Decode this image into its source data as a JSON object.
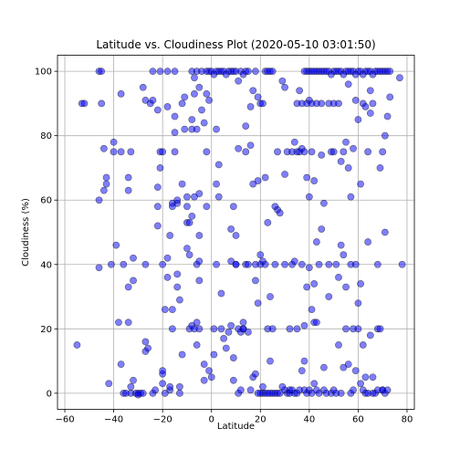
{
  "chart_data": {
    "type": "scatter",
    "title": "Latitude vs. Cloudiness Plot (2020-05-10 03:01:50)",
    "xlabel": "Latitude",
    "ylabel": "Cloudiness (%)",
    "xlim": [
      -63,
      83
    ],
    "ylim": [
      -5,
      105
    ],
    "xticks": [
      -60,
      -40,
      -20,
      0,
      20,
      40,
      60,
      80
    ],
    "yticks": [
      0,
      20,
      40,
      60,
      80,
      100
    ],
    "grid": true,
    "marker_color": "#0000ff",
    "marker_edge_color": "#000000",
    "points": [
      [
        -55,
        15
      ],
      [
        -53,
        90
      ],
      [
        -52,
        90
      ],
      [
        -46,
        39
      ],
      [
        -46,
        100
      ],
      [
        -46,
        60
      ],
      [
        -45,
        90
      ],
      [
        -45,
        100
      ],
      [
        -44,
        76
      ],
      [
        -44,
        63
      ],
      [
        -43,
        65
      ],
      [
        -43,
        67
      ],
      [
        -42,
        3
      ],
      [
        -41,
        40
      ],
      [
        -40,
        78
      ],
      [
        -40,
        75
      ],
      [
        -39,
        46
      ],
      [
        -38,
        22
      ],
      [
        -37,
        9
      ],
      [
        -37,
        75
      ],
      [
        -37,
        93
      ],
      [
        -36,
        40
      ],
      [
        -36,
        0
      ],
      [
        -35,
        0
      ],
      [
        -34,
        22
      ],
      [
        -34,
        33
      ],
      [
        -34,
        63
      ],
      [
        -34,
        67
      ],
      [
        -33,
        75
      ],
      [
        -33,
        0
      ],
      [
        -33,
        2
      ],
      [
        -32,
        42
      ],
      [
        -32,
        35
      ],
      [
        -32,
        4
      ],
      [
        -31,
        0
      ],
      [
        -30,
        0
      ],
      [
        -30,
        -0.5
      ],
      [
        -29,
        0
      ],
      [
        -28,
        0
      ],
      [
        -28,
        95
      ],
      [
        -27,
        40
      ],
      [
        -27,
        91
      ],
      [
        -27,
        16
      ],
      [
        -27,
        13
      ],
      [
        -26,
        14
      ],
      [
        -25,
        90
      ],
      [
        -24,
        100
      ],
      [
        -24,
        91
      ],
      [
        -24,
        0
      ],
      [
        -23,
        1
      ],
      [
        -22,
        88
      ],
      [
        -22,
        58
      ],
      [
        -22,
        52
      ],
      [
        -22,
        64
      ],
      [
        -21,
        100
      ],
      [
        -21,
        70
      ],
      [
        -21,
        75
      ],
      [
        -20,
        75
      ],
      [
        -20,
        40
      ],
      [
        -20,
        6
      ],
      [
        -20,
        7
      ],
      [
        -20,
        3
      ],
      [
        -19,
        0
      ],
      [
        -19,
        26
      ],
      [
        -18,
        100
      ],
      [
        -18,
        89
      ],
      [
        -18,
        42
      ],
      [
        -18,
        36
      ],
      [
        -17,
        1
      ],
      [
        -17,
        2
      ],
      [
        -17,
        49
      ],
      [
        -16,
        59
      ],
      [
        -16,
        58
      ],
      [
        -16,
        26
      ],
      [
        -16,
        20
      ],
      [
        -15,
        81
      ],
      [
        -15,
        86
      ],
      [
        -15,
        75
      ],
      [
        -15,
        100
      ],
      [
        -14,
        59
      ],
      [
        -14,
        60
      ],
      [
        -14,
        33
      ],
      [
        -14,
        37
      ],
      [
        -13,
        29
      ],
      [
        -13,
        2
      ],
      [
        -13,
        0
      ],
      [
        -12,
        65
      ],
      [
        -12,
        90
      ],
      [
        -12,
        12
      ],
      [
        -11,
        92
      ],
      [
        -11,
        82
      ],
      [
        -10,
        58
      ],
      [
        -10,
        61
      ],
      [
        -10,
        45
      ],
      [
        -10,
        53
      ],
      [
        -9,
        43
      ],
      [
        -9,
        53
      ],
      [
        -9,
        20
      ],
      [
        -8,
        21
      ],
      [
        -8,
        82
      ],
      [
        -8,
        100
      ],
      [
        -8,
        55
      ],
      [
        -8,
        85
      ],
      [
        -7,
        98
      ],
      [
        -7,
        93
      ],
      [
        -7,
        61
      ],
      [
        -7,
        20
      ],
      [
        -6,
        100
      ],
      [
        -6,
        82
      ],
      [
        -6,
        40
      ],
      [
        -6,
        22
      ],
      [
        -6,
        15
      ],
      [
        -5,
        95
      ],
      [
        -5,
        35
      ],
      [
        -5,
        62
      ],
      [
        -5,
        41
      ],
      [
        -5,
        49
      ],
      [
        -5,
        20
      ],
      [
        -4,
        100
      ],
      [
        -4,
        88
      ],
      [
        -3,
        9
      ],
      [
        -3,
        4
      ],
      [
        -3,
        84
      ],
      [
        -2,
        100
      ],
      [
        -2,
        93
      ],
      [
        -2,
        75
      ],
      [
        -2,
        58
      ],
      [
        -1,
        91
      ],
      [
        -1,
        100
      ],
      [
        -1,
        7
      ],
      [
        0,
        100
      ],
      [
        0,
        5
      ],
      [
        1,
        99
      ],
      [
        1,
        20
      ],
      [
        1,
        12
      ],
      [
        2,
        100
      ],
      [
        2,
        65
      ],
      [
        2,
        40
      ],
      [
        2,
        82
      ],
      [
        3,
        100
      ],
      [
        3,
        61
      ],
      [
        3,
        71
      ],
      [
        4,
        100
      ],
      [
        4,
        20
      ],
      [
        4,
        31
      ],
      [
        5,
        100
      ],
      [
        5,
        17
      ],
      [
        6,
        99
      ],
      [
        6,
        14
      ],
      [
        7,
        100
      ],
      [
        7,
        19
      ],
      [
        8,
        100
      ],
      [
        8,
        41
      ],
      [
        8,
        51
      ],
      [
        8,
        21
      ],
      [
        9,
        100
      ],
      [
        9,
        58
      ],
      [
        9,
        11
      ],
      [
        9,
        4
      ],
      [
        10,
        100
      ],
      [
        10,
        40
      ],
      [
        10,
        49
      ],
      [
        10,
        40
      ],
      [
        11,
        97
      ],
      [
        11,
        76
      ],
      [
        11,
        20
      ],
      [
        11,
        0
      ],
      [
        12,
        100
      ],
      [
        12,
        19
      ],
      [
        12,
        1
      ],
      [
        13,
        99
      ],
      [
        13,
        20
      ],
      [
        13,
        20
      ],
      [
        13,
        22
      ],
      [
        14,
        100
      ],
      [
        14,
        75
      ],
      [
        14,
        40
      ],
      [
        14,
        83
      ],
      [
        15,
        100
      ],
      [
        15,
        19
      ],
      [
        15,
        40
      ],
      [
        16,
        89
      ],
      [
        16,
        77
      ],
      [
        16,
        1
      ],
      [
        17,
        94
      ],
      [
        17,
        65
      ],
      [
        17,
        5
      ],
      [
        18,
        100
      ],
      [
        18,
        35
      ],
      [
        18,
        40
      ],
      [
        18,
        6
      ],
      [
        19,
        92
      ],
      [
        19,
        66
      ],
      [
        19,
        28
      ],
      [
        19,
        0
      ],
      [
        20,
        90
      ],
      [
        20,
        0
      ],
      [
        20,
        43
      ],
      [
        20,
        40
      ],
      [
        21,
        90
      ],
      [
        21,
        0
      ],
      [
        21,
        2
      ],
      [
        21,
        41
      ],
      [
        22,
        100
      ],
      [
        22,
        67
      ],
      [
        22,
        40
      ],
      [
        22,
        0
      ],
      [
        23,
        100
      ],
      [
        23,
        0
      ],
      [
        23,
        20
      ],
      [
        23,
        53
      ],
      [
        24,
        100
      ],
      [
        24,
        10
      ],
      [
        24,
        30
      ],
      [
        24,
        0
      ],
      [
        25,
        100
      ],
      [
        25,
        20
      ],
      [
        25,
        0
      ],
      [
        26,
        58
      ],
      [
        26,
        40
      ],
      [
        26,
        0
      ],
      [
        27,
        75
      ],
      [
        27,
        0
      ],
      [
        27,
        57
      ],
      [
        28,
        56
      ],
      [
        28,
        0
      ],
      [
        29,
        97
      ],
      [
        29,
        2
      ],
      [
        30,
        95
      ],
      [
        30,
        40
      ],
      [
        30,
        1
      ],
      [
        30,
        68
      ],
      [
        31,
        75
      ],
      [
        31,
        0
      ],
      [
        32,
        0
      ],
      [
        32,
        20
      ],
      [
        32,
        1
      ],
      [
        33,
        1
      ],
      [
        33,
        75
      ],
      [
        33,
        40
      ],
      [
        34,
        78
      ],
      [
        34,
        0
      ],
      [
        34,
        41
      ],
      [
        35,
        75
      ],
      [
        35,
        0
      ],
      [
        35,
        20
      ],
      [
        35,
        90
      ],
      [
        36,
        94
      ],
      [
        36,
        1
      ],
      [
        36,
        75
      ],
      [
        37,
        76
      ],
      [
        37,
        90
      ],
      [
        37,
        7
      ],
      [
        37,
        40
      ],
      [
        38,
        75
      ],
      [
        38,
        1
      ],
      [
        38,
        100
      ],
      [
        38,
        21
      ],
      [
        38,
        10
      ],
      [
        39,
        100
      ],
      [
        39,
        0
      ],
      [
        39,
        67
      ],
      [
        39,
        90
      ],
      [
        39,
        33
      ],
      [
        40,
        100
      ],
      [
        40,
        1
      ],
      [
        40,
        61
      ],
      [
        40,
        91
      ],
      [
        40,
        39
      ],
      [
        41,
        100
      ],
      [
        41,
        0
      ],
      [
        41,
        75
      ],
      [
        41,
        90
      ],
      [
        41,
        26
      ],
      [
        42,
        100
      ],
      [
        42,
        3
      ],
      [
        42,
        34
      ],
      [
        42,
        22
      ],
      [
        42,
        66
      ],
      [
        43,
        100
      ],
      [
        43,
        47
      ],
      [
        43,
        1
      ],
      [
        43,
        90
      ],
      [
        43,
        22
      ],
      [
        44,
        100
      ],
      [
        44,
        40
      ],
      [
        44,
        0
      ],
      [
        45,
        100
      ],
      [
        45,
        74
      ],
      [
        45,
        51
      ],
      [
        45,
        90
      ],
      [
        46,
        100
      ],
      [
        46,
        59
      ],
      [
        46,
        8
      ],
      [
        46,
        1
      ],
      [
        47,
        100
      ],
      [
        47,
        0
      ],
      [
        48,
        100
      ],
      [
        48,
        30
      ],
      [
        48,
        90
      ],
      [
        48,
        40
      ],
      [
        49,
        99
      ],
      [
        49,
        75
      ],
      [
        49,
        0
      ],
      [
        50,
        100
      ],
      [
        50,
        1
      ],
      [
        50,
        90
      ],
      [
        50,
        75
      ],
      [
        51,
        100
      ],
      [
        51,
        40
      ],
      [
        51,
        0
      ],
      [
        52,
        100
      ],
      [
        52,
        36
      ],
      [
        52,
        90
      ],
      [
        52,
        15
      ],
      [
        53,
        100
      ],
      [
        53,
        72
      ],
      [
        53,
        46
      ],
      [
        53,
        0
      ],
      [
        54,
        99
      ],
      [
        54,
        43
      ],
      [
        54,
        8
      ],
      [
        54,
        75
      ],
      [
        55,
        100
      ],
      [
        55,
        33
      ],
      [
        55,
        78
      ],
      [
        55,
        20
      ],
      [
        56,
        100
      ],
      [
        56,
        96
      ],
      [
        56,
        70
      ],
      [
        56,
        9
      ],
      [
        57,
        100
      ],
      [
        57,
        61
      ],
      [
        57,
        40
      ],
      [
        57,
        0
      ],
      [
        58,
        100
      ],
      [
        58,
        20
      ],
      [
        58,
        76
      ],
      [
        58,
        1
      ],
      [
        59,
        99
      ],
      [
        59,
        91
      ],
      [
        59,
        40
      ],
      [
        59,
        7
      ],
      [
        60,
        100
      ],
      [
        60,
        85
      ],
      [
        60,
        28
      ],
      [
        60,
        20
      ],
      [
        61,
        100
      ],
      [
        61,
        65
      ],
      [
        61,
        34
      ],
      [
        61,
        3
      ],
      [
        62,
        99
      ],
      [
        62,
        90
      ],
      [
        62,
        15
      ],
      [
        62,
        1
      ],
      [
        63,
        100
      ],
      [
        63,
        89
      ],
      [
        63,
        0
      ],
      [
        63,
        5
      ],
      [
        64,
        100
      ],
      [
        64,
        47
      ],
      [
        64,
        75
      ],
      [
        64,
        0
      ],
      [
        65,
        100
      ],
      [
        65,
        94
      ],
      [
        65,
        18
      ],
      [
        65,
        87
      ],
      [
        66,
        99
      ],
      [
        66,
        90
      ],
      [
        66,
        5
      ],
      [
        66,
        0
      ],
      [
        67,
        100
      ],
      [
        67,
        0
      ],
      [
        68,
        100
      ],
      [
        68,
        40
      ],
      [
        68,
        1
      ],
      [
        68,
        20
      ],
      [
        69,
        100
      ],
      [
        69,
        70
      ],
      [
        69,
        20
      ],
      [
        70,
        100
      ],
      [
        70,
        75
      ],
      [
        70,
        1
      ],
      [
        70,
        1
      ],
      [
        71,
        100
      ],
      [
        71,
        80
      ],
      [
        71,
        50
      ],
      [
        71,
        0
      ],
      [
        72,
        100
      ],
      [
        72,
        86
      ],
      [
        72,
        1
      ],
      [
        73,
        92
      ],
      [
        73,
        100
      ],
      [
        77,
        98
      ],
      [
        78,
        40
      ]
    ]
  }
}
